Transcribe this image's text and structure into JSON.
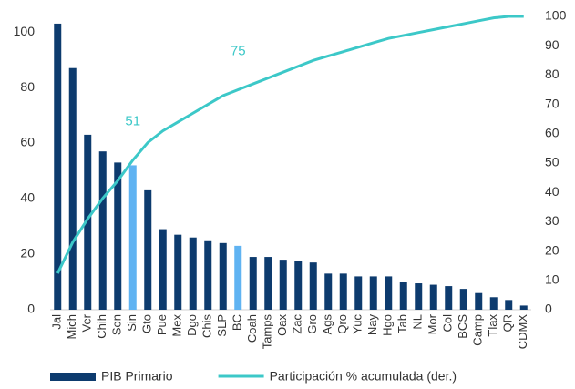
{
  "chart_data": {
    "type": "bar_line",
    "categories": [
      "Jal",
      "Mich",
      "Ver",
      "Chih",
      "Son",
      "Sin",
      "Gto",
      "Pue",
      "Mex",
      "Dgo",
      "Chis",
      "SLP",
      "BC",
      "Coah",
      "Tamps",
      "Oax",
      "Zac",
      "Gro",
      "Ags",
      "Qro",
      "Yuc",
      "Nay",
      "Hgo",
      "Tab",
      "NL",
      "Mor",
      "Col",
      "BCS",
      "Camp",
      "Tlax",
      "QR",
      "CDMX"
    ],
    "series": [
      {
        "name": "PIB Primario",
        "type": "bar",
        "color": "#0d3b6e",
        "colors": [
          "#0d3b6e",
          "#0d3b6e",
          "#0d3b6e",
          "#0d3b6e",
          "#0d3b6e",
          "#5fb3f2",
          "#0d3b6e",
          "#0d3b6e",
          "#0d3b6e",
          "#0d3b6e",
          "#0d3b6e",
          "#0d3b6e",
          "#5fb3f2",
          "#0d3b6e",
          "#0d3b6e",
          "#0d3b6e",
          "#0d3b6e",
          "#0d3b6e",
          "#0d3b6e",
          "#0d3b6e",
          "#0d3b6e",
          "#0d3b6e",
          "#0d3b6e",
          "#0d3b6e",
          "#0d3b6e",
          "#0d3b6e",
          "#0d3b6e",
          "#0d3b6e",
          "#0d3b6e",
          "#0d3b6e",
          "#0d3b6e",
          "#0d3b6e"
        ],
        "values": [
          103,
          87,
          63,
          57,
          53,
          52,
          43,
          29,
          27,
          26,
          25,
          24,
          23,
          19,
          19,
          18,
          17.5,
          17,
          13,
          13,
          12,
          12,
          12,
          10,
          9.5,
          9,
          8.5,
          7.5,
          6,
          4.5,
          3.5,
          1.5
        ]
      },
      {
        "name": "Participación % acumulada (der.)",
        "type": "line",
        "axis": "y2",
        "color": "#3cc8c8",
        "values": [
          12.4,
          23,
          31,
          38,
          44,
          51,
          57,
          61,
          64,
          67,
          70,
          73,
          75,
          77,
          79,
          81,
          83,
          85,
          86.5,
          88,
          89.5,
          91,
          92.5,
          93.5,
          94.5,
          95.5,
          96.5,
          97.5,
          98.5,
          99.5,
          100,
          100
        ],
        "value_labels": [
          null,
          null,
          null,
          null,
          null,
          "51",
          null,
          null,
          null,
          null,
          null,
          null,
          "75",
          null,
          null,
          null,
          null,
          null,
          null,
          null,
          null,
          null,
          null,
          null,
          null,
          null,
          null,
          null,
          null,
          null,
          null,
          null
        ]
      }
    ],
    "ylim": [
      0,
      105.6
    ],
    "yticks": [
      0,
      20,
      40,
      60,
      80,
      100
    ],
    "y2lim": [
      0,
      100
    ],
    "y2ticks": [
      0,
      10,
      20,
      30,
      40,
      50,
      60,
      70,
      80,
      90,
      100
    ],
    "grid": false,
    "legend": "bottom"
  }
}
